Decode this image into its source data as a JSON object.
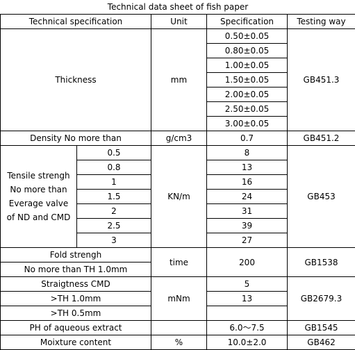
{
  "title": "Technical  data sheet of fish paper",
  "header": [
    "Technical specification",
    "Unit",
    "Specification",
    "Testing way"
  ],
  "thickness": {
    "label": "Thickness",
    "unit": "mm",
    "specs": [
      "0.50±0.05",
      "0.80±0.05",
      "1.00±0.05",
      "1.50±0.05",
      "2.00±0.05",
      "2.50±0.05",
      "3.00±0.05"
    ],
    "method": "GB451.3"
  },
  "density": {
    "label": "Density No more than",
    "unit": "g/cm3",
    "spec": "0.7",
    "method": "GB451.2"
  },
  "tensile": {
    "label_lines": [
      "Tensile strengh",
      "No more than",
      "Everage valve",
      "of ND and CMD"
    ],
    "sizes": [
      "0.5",
      "0.8",
      "1",
      "1.5",
      "2",
      "2.5",
      "3"
    ],
    "unit": "KN/m",
    "specs": [
      "8",
      "13",
      "16",
      "24",
      "31",
      "39",
      "27"
    ],
    "method": "GB453"
  },
  "fold": {
    "label_lines": [
      "Fold strengh",
      "No more than TH 1.0mm"
    ],
    "unit": "time",
    "spec": "200",
    "method": "GB1538"
  },
  "straightness": {
    "label_lines": [
      "Straigtness CMD",
      ">TH 1.0mm",
      ">TH 0.5mm"
    ],
    "unit": "mNm",
    "specs": [
      "5",
      "13"
    ],
    "method": "GB2679.3"
  },
  "ph": {
    "label": "PH of aqueous extract",
    "spec": "6.0～7.5",
    "method": "GB1545"
  },
  "moisture": {
    "label": "Moixture content",
    "unit": "%",
    "spec": "10.0±2.0",
    "method": "GB462"
  }
}
